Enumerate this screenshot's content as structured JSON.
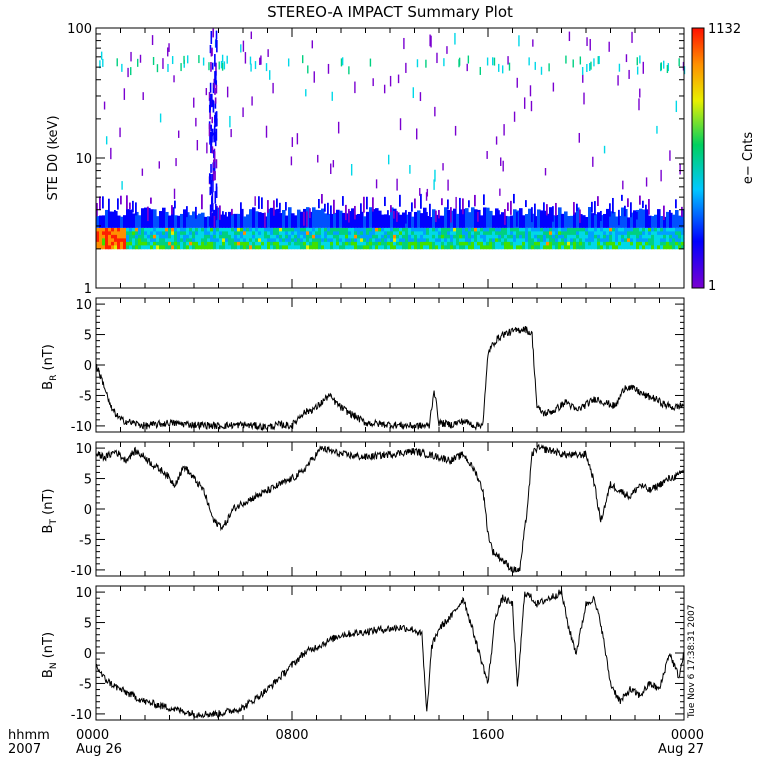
{
  "chart_data": {
    "type": "multi-panel time series",
    "title": "STEREO-A IMPACT Summary Plot",
    "x_axis": {
      "range_hours": [
        0,
        24
      ],
      "ticks": [
        {
          "hour": 0,
          "label": "0000",
          "sub": "Aug 26"
        },
        {
          "hour": 8,
          "label": "0800",
          "sub": ""
        },
        {
          "hour": 16,
          "label": "1600",
          "sub": ""
        },
        {
          "hour": 24,
          "label": "0000",
          "sub": "Aug 27"
        }
      ],
      "left_label": "hhmm",
      "left_sub": "2007"
    },
    "timestamp": "Tue Nov  6 17:38:31 2007",
    "panels": [
      {
        "kind": "spectrogram",
        "ylabel": "STE D0 (keV)",
        "scale": "log",
        "ylim": [
          1,
          100
        ],
        "yticks": [
          {
            "v": 1,
            "label": "1"
          },
          {
            "v": 10,
            "label": "10"
          },
          {
            "v": 100,
            "label": "100"
          }
        ],
        "colorbar": {
          "min_label": "1",
          "max_label": "1132",
          "label": "e− Cnts"
        },
        "bright_band_keV": [
          2.0,
          2.9
        ],
        "cutoff_keV": 2.0,
        "burst_hours": [
          4.6,
          4.9
        ]
      },
      {
        "kind": "line",
        "ylabel_main": "B",
        "ylabel_sub": "R",
        "ylabel_unit": " (nT)",
        "ylim": [
          -11,
          11
        ],
        "yticks": [
          {
            "v": -10,
            "label": "-10"
          },
          {
            "v": -5,
            "label": "-5"
          },
          {
            "v": 0,
            "label": "0"
          },
          {
            "v": 5,
            "label": "5"
          },
          {
            "v": 10,
            "label": "10"
          }
        ],
        "series": {
          "x": [
            0,
            0.3,
            0.6,
            1,
            1.5,
            2,
            3,
            4,
            5,
            6,
            7,
            7.5,
            8,
            8.4,
            9,
            9.5,
            10,
            11,
            12,
            13,
            13.6,
            13.8,
            14,
            14.5,
            15,
            15.5,
            15.8,
            16,
            16.3,
            16.6,
            17,
            17.5,
            17.8,
            18,
            18.3,
            18.7,
            19.2,
            19.6,
            20,
            20.4,
            20.8,
            21.2,
            21.6,
            22,
            22.4,
            22.8,
            23.2,
            23.6,
            24
          ],
          "y": [
            0,
            -3,
            -7,
            -9,
            -9.5,
            -10,
            -9.5,
            -9.8,
            -10,
            -9.8,
            -10.2,
            -9.8,
            -10,
            -8,
            -7,
            -5,
            -7,
            -9.5,
            -9.8,
            -10,
            -10,
            -4,
            -9.5,
            -9.8,
            -9.2,
            -10,
            -9.6,
            2,
            4,
            5,
            5.5,
            6,
            5,
            -7,
            -8,
            -7.5,
            -6,
            -7.5,
            -6.5,
            -5.5,
            -6.2,
            -6.8,
            -3.5,
            -4,
            -5,
            -5.5,
            -6.5,
            -7,
            -6.5
          ]
        }
      },
      {
        "kind": "line",
        "ylabel_main": "B",
        "ylabel_sub": "T",
        "ylabel_unit": " (nT)",
        "ylim": [
          -11,
          11
        ],
        "yticks": [
          {
            "v": -10,
            "label": "-10"
          },
          {
            "v": -5,
            "label": "-5"
          },
          {
            "v": 0,
            "label": "0"
          },
          {
            "v": 5,
            "label": "5"
          },
          {
            "v": 10,
            "label": "10"
          }
        ],
        "series": {
          "x": [
            0,
            0.4,
            0.8,
            1.2,
            1.6,
            2,
            2.4,
            2.8,
            3.2,
            3.6,
            4,
            4.4,
            4.8,
            5.2,
            5.6,
            6,
            6.5,
            7,
            7.5,
            8,
            8.4,
            8.8,
            9.2,
            9.6,
            10,
            11,
            12,
            13,
            14,
            14.5,
            15,
            15.5,
            15.8,
            16,
            16.2,
            16.5,
            17,
            17.3,
            17.6,
            17.8,
            18,
            18.3,
            18.7,
            19,
            19.5,
            20,
            20.3,
            20.6,
            21,
            21.4,
            21.8,
            22.2,
            22.6,
            23,
            23.4,
            23.8,
            24
          ],
          "y": [
            9,
            8.5,
            9.5,
            8,
            9.5,
            8.5,
            7,
            6,
            4,
            7,
            5,
            3,
            -2,
            -3,
            0,
            1,
            2,
            3,
            4,
            5,
            6,
            8,
            10,
            9.5,
            9,
            8.5,
            9,
            9.5,
            8.5,
            8,
            9,
            6,
            3,
            -4,
            -7,
            -8,
            -10,
            -10,
            0,
            9,
            10,
            9.8,
            9.5,
            9,
            8.8,
            9,
            5,
            -2,
            4,
            3,
            2,
            4,
            3,
            4,
            5,
            5.5,
            6.5
          ]
        }
      },
      {
        "kind": "line",
        "ylabel_main": "B",
        "ylabel_sub": "N",
        "ylabel_unit": " (nT)",
        "ylim": [
          -11,
          11
        ],
        "yticks": [
          {
            "v": -10,
            "label": "-10"
          },
          {
            "v": -5,
            "label": "-5"
          },
          {
            "v": 0,
            "label": "0"
          },
          {
            "v": 5,
            "label": "5"
          },
          {
            "v": 10,
            "label": "10"
          }
        ],
        "series": {
          "x": [
            0,
            0.3,
            0.6,
            1,
            1.5,
            2,
            2.5,
            3,
            3.5,
            4,
            5,
            6,
            7,
            7.5,
            8,
            8.5,
            9,
            9.5,
            10,
            10.5,
            11,
            11.5,
            12,
            12.5,
            13,
            13.3,
            13.5,
            13.7,
            14,
            14.5,
            15,
            15.5,
            16,
            16.3,
            16.6,
            17,
            17.2,
            17.5,
            17.8,
            18,
            18.5,
            19,
            19.3,
            19.6,
            20,
            20.3,
            20.6,
            21,
            21.4,
            21.8,
            22.2,
            22.6,
            23,
            23.4,
            23.8,
            24
          ],
          "y": [
            -2,
            -4,
            -5,
            -6,
            -7,
            -8,
            -8.5,
            -9,
            -9.5,
            -10,
            -10,
            -9,
            -6,
            -4,
            -2,
            0,
            1,
            2,
            3,
            3.2,
            3.5,
            3.8,
            4,
            4.2,
            3.8,
            3,
            -10,
            1,
            4,
            6,
            9,
            2,
            -5,
            6,
            9,
            8,
            -6,
            10,
            9,
            8,
            9,
            10,
            4,
            0,
            8,
            9,
            5,
            -5,
            -8,
            -6,
            -7,
            -5,
            -6,
            0,
            -4,
            0
          ]
        }
      }
    ]
  }
}
